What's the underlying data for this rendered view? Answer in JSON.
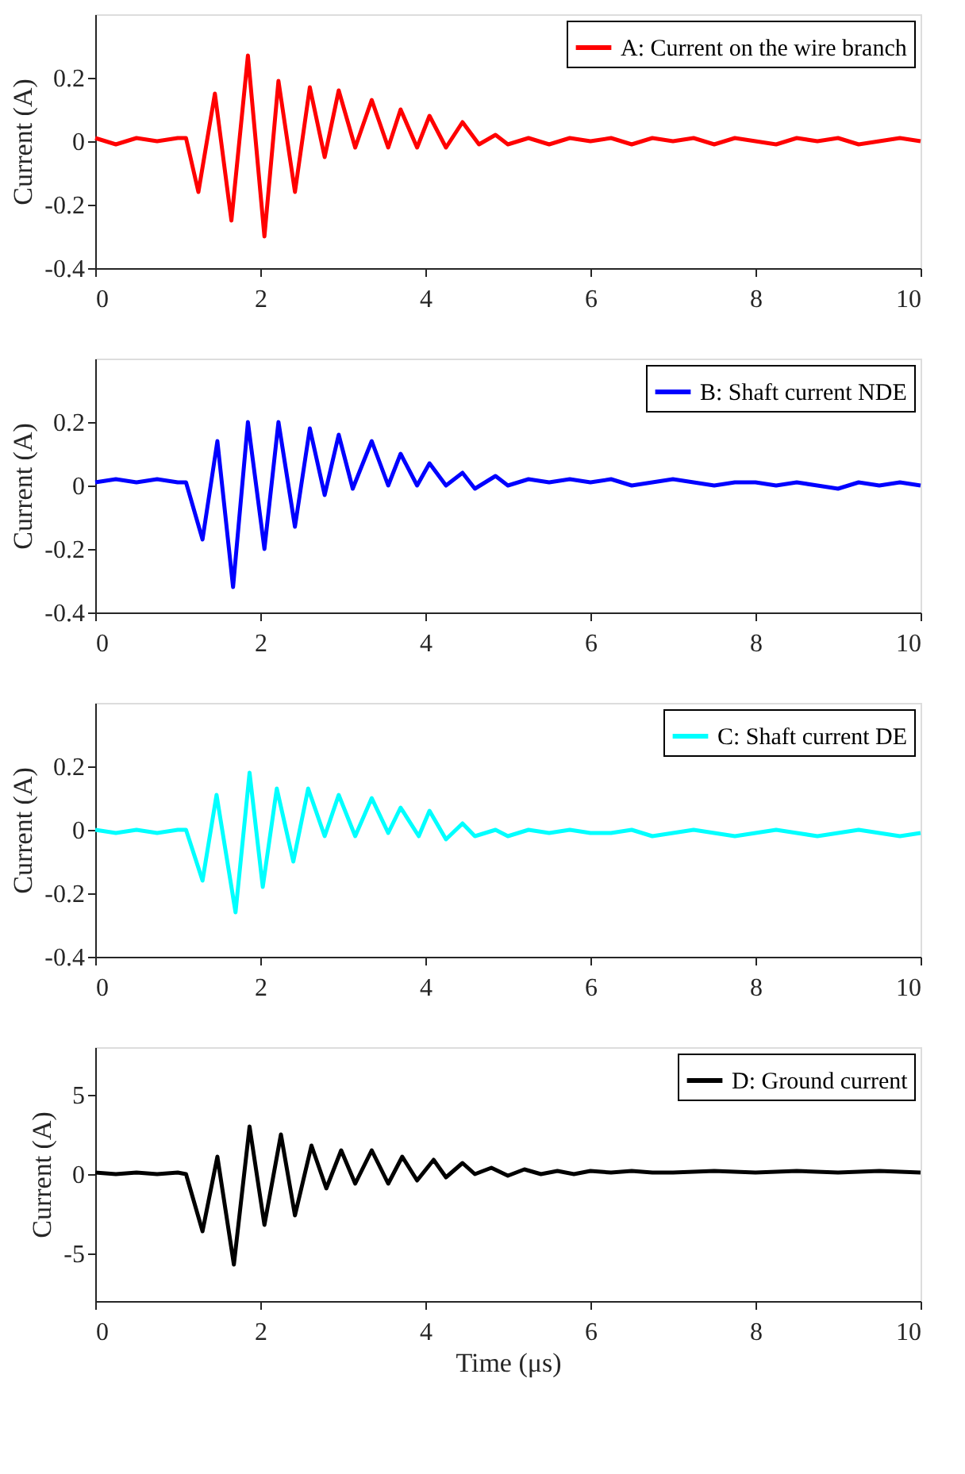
{
  "chart_data": [
    {
      "type": "line",
      "legend": "top right",
      "grid": false,
      "ylabel": "Current (A)",
      "xlim": [
        0,
        10
      ],
      "xticks": [
        0,
        2,
        4,
        6,
        8,
        10
      ],
      "ylim": [
        -0.4,
        0.4
      ],
      "yticks": [
        -0.4,
        -0.2,
        0,
        0.2
      ],
      "x": [
        0,
        0.25,
        0.5,
        0.75,
        1.0,
        1.1,
        1.25,
        1.45,
        1.65,
        1.85,
        2.05,
        2.22,
        2.42,
        2.6,
        2.78,
        2.95,
        3.15,
        3.35,
        3.55,
        3.7,
        3.9,
        4.05,
        4.25,
        4.45,
        4.65,
        4.85,
        5.0,
        5.25,
        5.5,
        5.75,
        6.0,
        6.25,
        6.5,
        6.75,
        7.0,
        7.25,
        7.5,
        7.75,
        8.0,
        8.25,
        8.5,
        8.75,
        9.0,
        9.25,
        9.5,
        9.75,
        10
      ],
      "series": [
        {
          "name": "A: Current on the wire branch",
          "color": "#ff0000",
          "values": [
            0.01,
            -0.01,
            0.01,
            0.0,
            0.01,
            0.01,
            -0.16,
            0.15,
            -0.25,
            0.27,
            -0.3,
            0.19,
            -0.16,
            0.17,
            -0.05,
            0.16,
            -0.02,
            0.13,
            -0.02,
            0.1,
            -0.02,
            0.08,
            -0.02,
            0.06,
            -0.01,
            0.02,
            -0.01,
            0.01,
            -0.01,
            0.01,
            0.0,
            0.01,
            -0.01,
            0.01,
            0.0,
            0.01,
            -0.01,
            0.01,
            0.0,
            -0.01,
            0.01,
            0.0,
            0.01,
            -0.01,
            0.0,
            0.01,
            0.0
          ]
        }
      ]
    },
    {
      "type": "line",
      "legend": "top right",
      "grid": false,
      "ylabel": "Current (A)",
      "xlim": [
        0,
        10
      ],
      "xticks": [
        0,
        2,
        4,
        6,
        8,
        10
      ],
      "ylim": [
        -0.4,
        0.4
      ],
      "yticks": [
        -0.4,
        -0.2,
        0,
        0.2
      ],
      "x": [
        0,
        0.25,
        0.5,
        0.75,
        1.0,
        1.1,
        1.3,
        1.48,
        1.67,
        1.85,
        2.05,
        2.22,
        2.42,
        2.6,
        2.78,
        2.95,
        3.12,
        3.35,
        3.55,
        3.7,
        3.9,
        4.05,
        4.25,
        4.45,
        4.6,
        4.85,
        5.0,
        5.25,
        5.5,
        5.75,
        6.0,
        6.25,
        6.5,
        6.75,
        7.0,
        7.25,
        7.5,
        7.75,
        8.0,
        8.25,
        8.5,
        8.75,
        9.0,
        9.25,
        9.5,
        9.75,
        10
      ],
      "series": [
        {
          "name": "B: Shaft current NDE",
          "color": "#0000ff",
          "values": [
            0.01,
            0.02,
            0.01,
            0.02,
            0.01,
            0.01,
            -0.17,
            0.14,
            -0.32,
            0.2,
            -0.2,
            0.2,
            -0.13,
            0.18,
            -0.03,
            0.16,
            -0.01,
            0.14,
            0.0,
            0.1,
            0.0,
            0.07,
            0.0,
            0.04,
            -0.01,
            0.03,
            0.0,
            0.02,
            0.01,
            0.02,
            0.01,
            0.02,
            0.0,
            0.01,
            0.02,
            0.01,
            0.0,
            0.01,
            0.01,
            0.0,
            0.01,
            0.0,
            -0.01,
            0.01,
            0.0,
            0.01,
            0.0
          ]
        }
      ]
    },
    {
      "type": "line",
      "legend": "top right",
      "grid": false,
      "ylabel": "Current (A)",
      "xlim": [
        0,
        10
      ],
      "xticks": [
        0,
        2,
        4,
        6,
        8,
        10
      ],
      "ylim": [
        -0.4,
        0.4
      ],
      "yticks": [
        -0.4,
        -0.2,
        0,
        0.2
      ],
      "x": [
        0,
        0.25,
        0.5,
        0.75,
        1.0,
        1.1,
        1.3,
        1.47,
        1.7,
        1.87,
        2.03,
        2.2,
        2.4,
        2.58,
        2.78,
        2.95,
        3.15,
        3.35,
        3.55,
        3.7,
        3.92,
        4.05,
        4.25,
        4.45,
        4.6,
        4.85,
        5.0,
        5.25,
        5.5,
        5.75,
        6.0,
        6.25,
        6.5,
        6.75,
        7.0,
        7.25,
        7.5,
        7.75,
        8.0,
        8.25,
        8.5,
        8.75,
        9.0,
        9.25,
        9.5,
        9.75,
        10
      ],
      "series": [
        {
          "name": "C: Shaft current DE",
          "color": "#00ffff",
          "values": [
            0.0,
            -0.01,
            0.0,
            -0.01,
            0.0,
            0.0,
            -0.16,
            0.11,
            -0.26,
            0.18,
            -0.18,
            0.13,
            -0.1,
            0.13,
            -0.02,
            0.11,
            -0.02,
            0.1,
            -0.01,
            0.07,
            -0.02,
            0.06,
            -0.03,
            0.02,
            -0.02,
            0.0,
            -0.02,
            0.0,
            -0.01,
            0.0,
            -0.01,
            -0.01,
            0.0,
            -0.02,
            -0.01,
            0.0,
            -0.01,
            -0.02,
            -0.01,
            0.0,
            -0.01,
            -0.02,
            -0.01,
            0.0,
            -0.01,
            -0.02,
            -0.01
          ]
        }
      ]
    },
    {
      "type": "line",
      "legend": "top right",
      "grid": false,
      "ylabel": "Current (A)",
      "xlabel": "Time (μs)",
      "xlim": [
        0,
        10
      ],
      "xticks": [
        0,
        2,
        4,
        6,
        8,
        10
      ],
      "ylim": [
        -8,
        8
      ],
      "yticks": [
        -5,
        0,
        5
      ],
      "x": [
        0,
        0.25,
        0.5,
        0.75,
        1.0,
        1.1,
        1.3,
        1.48,
        1.68,
        1.87,
        2.05,
        2.25,
        2.42,
        2.62,
        2.8,
        2.98,
        3.15,
        3.35,
        3.55,
        3.72,
        3.9,
        4.1,
        4.25,
        4.45,
        4.6,
        4.8,
        5.0,
        5.2,
        5.4,
        5.6,
        5.8,
        6.0,
        6.25,
        6.5,
        6.75,
        7.0,
        7.5,
        8.0,
        8.5,
        9.0,
        9.5,
        10
      ],
      "series": [
        {
          "name": "D: Ground current",
          "color": "#000000",
          "values": [
            0.1,
            0.0,
            0.1,
            0.0,
            0.1,
            0.0,
            -3.6,
            1.1,
            -5.7,
            3.0,
            -3.2,
            2.5,
            -2.6,
            1.8,
            -0.9,
            1.5,
            -0.6,
            1.5,
            -0.6,
            1.1,
            -0.4,
            0.9,
            -0.2,
            0.7,
            0.0,
            0.4,
            -0.1,
            0.3,
            0.0,
            0.2,
            0.0,
            0.2,
            0.1,
            0.2,
            0.1,
            0.1,
            0.2,
            0.1,
            0.2,
            0.1,
            0.2,
            0.1
          ]
        }
      ]
    }
  ]
}
